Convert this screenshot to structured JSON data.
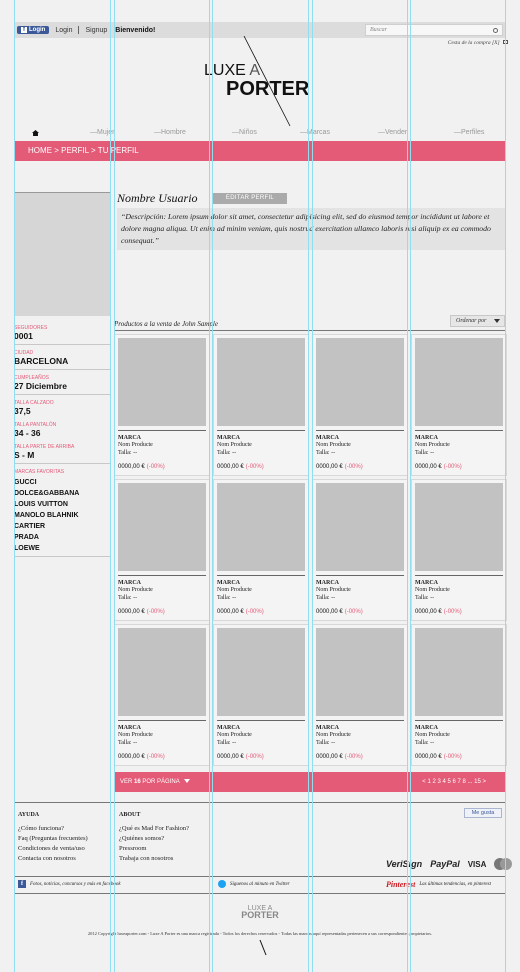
{
  "topbar": {
    "fb_login": "Login",
    "login": "Login",
    "signup": "Signup",
    "welcome": "Bienvenido!",
    "search_placeholder": "Buscar",
    "cart": "Cesta de la compra [X]"
  },
  "logo": {
    "line1_a": "LUXE",
    "line1_b": "A",
    "line2": "PORTER"
  },
  "nav": [
    "Mujer",
    "Hombre",
    "Niños",
    "Marcas",
    "Vender",
    "Perfiles"
  ],
  "breadcrumb": "HOME > PERFIL > TU PERFIL",
  "profile": {
    "name": "Nombre Usuario",
    "edit_button": "EDITAR PERFIL",
    "description": "“Descripción: Lorem ipsum dolor sit amet, consectetur adipisicing elit, sed do eiusmod tempor incididunt ut labore et dolore magna aliqua. Ut enim ad minim veniam, quis nostrud exercitation ullamco laboris nisi aliquip ex ea commodo consequat.”"
  },
  "stats": {
    "followers_label": "SEGUIDORES",
    "followers": "0001",
    "city_label": "CIUDAD",
    "city": "BARCELONA",
    "birthday_label": "CUMPLEAÑOS",
    "birthday": "27 Diciembre",
    "shoe_label": "TALLA CALZADO",
    "shoe": "37,5",
    "pants_label": "TALLA PANTALÓN",
    "pants": "34 - 36",
    "top_label": "TALLA PARTE DE ARRIBA",
    "top": "S - M",
    "brands_label": "MARCAS FAVORITAS",
    "brands": [
      "GUCCI",
      "DOLCE&GABBANA",
      "LOUIS VUITTON",
      "MANOLO BLAHNIK",
      "CARTIER",
      "PRADA",
      "LOEWE"
    ]
  },
  "products": {
    "title": "Productos a la venta de John Sample",
    "sort": "Ordenar por",
    "brand": "MARCA",
    "name": "Nom Producte",
    "size": "Talla: --",
    "price": "0000,00 €",
    "discount": "(-00%)"
  },
  "pager": {
    "per_pre": "VER",
    "per_num": "16",
    "per_post": "POR PÁGINA",
    "pages": "< 1 2 3 4 5 6 7 8 ... 15 >"
  },
  "footer": {
    "help_title": "AYUDA",
    "help": [
      "¿Cómo funciona?",
      "Faq (Preguntas frecuentes)",
      "Condiciones de venta/uso",
      "Contacta con nosotros"
    ],
    "about_title": "ABOUT",
    "about": [
      "¿Qué es Mad For Fashion?",
      "¿Quiénes somos?",
      "Pressroom",
      "Trabaja con nosotros"
    ],
    "like": "Me gusta",
    "seals": [
      "VeriSign",
      "PayPal",
      "VISA"
    ],
    "facebook": "Fotos, noticias, concursos y más en facebook",
    "twitter": "Síguenos al minuto en Twitter",
    "pinterest_brand": "Pinterest",
    "pinterest": "Las últimas tendencias, en pinterest",
    "footer_logo_1": "LUXE A",
    "footer_logo_2": "PORTER",
    "copyright": "2012 Copyright luxeaporter.com - Luxe A Porter es una marca registrada - Todos los derechos reservados - Todas las marcas aquí representadas pertenecen a sus correspondientes propietarios."
  },
  "colors": {
    "accent": "#e45b78",
    "facebook": "#3b5998",
    "twitter": "#1da1f2",
    "pinterest": "#cb2027",
    "guides": "#8fdff0"
  }
}
